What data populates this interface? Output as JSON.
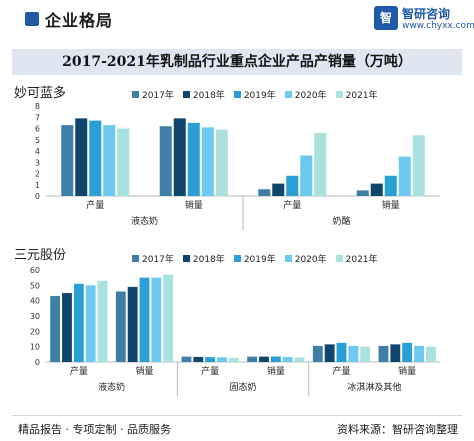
{
  "header": {
    "title": "企业格局",
    "logo_mark": "智",
    "logo_name": "智研咨询",
    "logo_url": "www.chyxx.com"
  },
  "main_title": "2017-2021年乳制品行业重点企业产品产销量（万吨）",
  "colors": [
    "#3f7fa6",
    "#10456c",
    "#2a9fd6",
    "#6cc9ef",
    "#a9e1de"
  ],
  "chart_data": [
    {
      "type": "bar",
      "title": "妙可蓝多",
      "legend": [
        "2017年",
        "2018年",
        "2019年",
        "2020年",
        "2021年"
      ],
      "legend_position": "top",
      "ylim": [
        0,
        8
      ],
      "yticks": [
        0,
        1,
        2,
        3,
        4,
        5,
        6,
        7,
        8
      ],
      "grid": false,
      "groups": [
        {
          "name": "液态奶",
          "categories": [
            "产量",
            "销量"
          ]
        },
        {
          "name": "奶酪",
          "categories": [
            "产量",
            "销量"
          ]
        }
      ],
      "series": [
        {
          "name": "2017年",
          "values": [
            6.3,
            6.2,
            0.6,
            0.5
          ]
        },
        {
          "name": "2018年",
          "values": [
            6.9,
            6.9,
            1.1,
            1.1
          ]
        },
        {
          "name": "2019年",
          "values": [
            6.7,
            6.5,
            1.8,
            1.8
          ]
        },
        {
          "name": "2020年",
          "values": [
            6.3,
            6.1,
            3.6,
            3.5
          ]
        },
        {
          "name": "2021年",
          "values": [
            6.0,
            5.9,
            5.6,
            5.4
          ]
        }
      ]
    },
    {
      "type": "bar",
      "title": "三元股份",
      "legend": [
        "2017年",
        "2018年",
        "2019年",
        "2020年",
        "2021年"
      ],
      "legend_position": "top",
      "ylim": [
        0,
        60
      ],
      "yticks": [
        0,
        10,
        20,
        30,
        40,
        50,
        60
      ],
      "grid": false,
      "groups": [
        {
          "name": "液态奶",
          "categories": [
            "产量",
            "销量"
          ]
        },
        {
          "name": "固态奶",
          "categories": [
            "产量",
            "销量"
          ]
        },
        {
          "name": "冰淇淋及其他",
          "categories": [
            "产量",
            "销量"
          ]
        }
      ],
      "series": [
        {
          "name": "2017年",
          "values": [
            43,
            46,
            3.5,
            3.5,
            10.5,
            10.5
          ]
        },
        {
          "name": "2018年",
          "values": [
            45,
            49,
            3.3,
            3.5,
            11.5,
            11.5
          ]
        },
        {
          "name": "2019年",
          "values": [
            51,
            55,
            3.2,
            3.6,
            12.5,
            12.5
          ]
        },
        {
          "name": "2020年",
          "values": [
            50,
            55,
            3.0,
            3.2,
            10.5,
            10.5
          ]
        },
        {
          "name": "2021年",
          "values": [
            53,
            57,
            2.7,
            3.0,
            10.0,
            10.0
          ]
        }
      ]
    }
  ],
  "footer": {
    "left": "精品报告 · 专项定制 · 品质服务",
    "right": "资料来源：智研咨询整理"
  }
}
